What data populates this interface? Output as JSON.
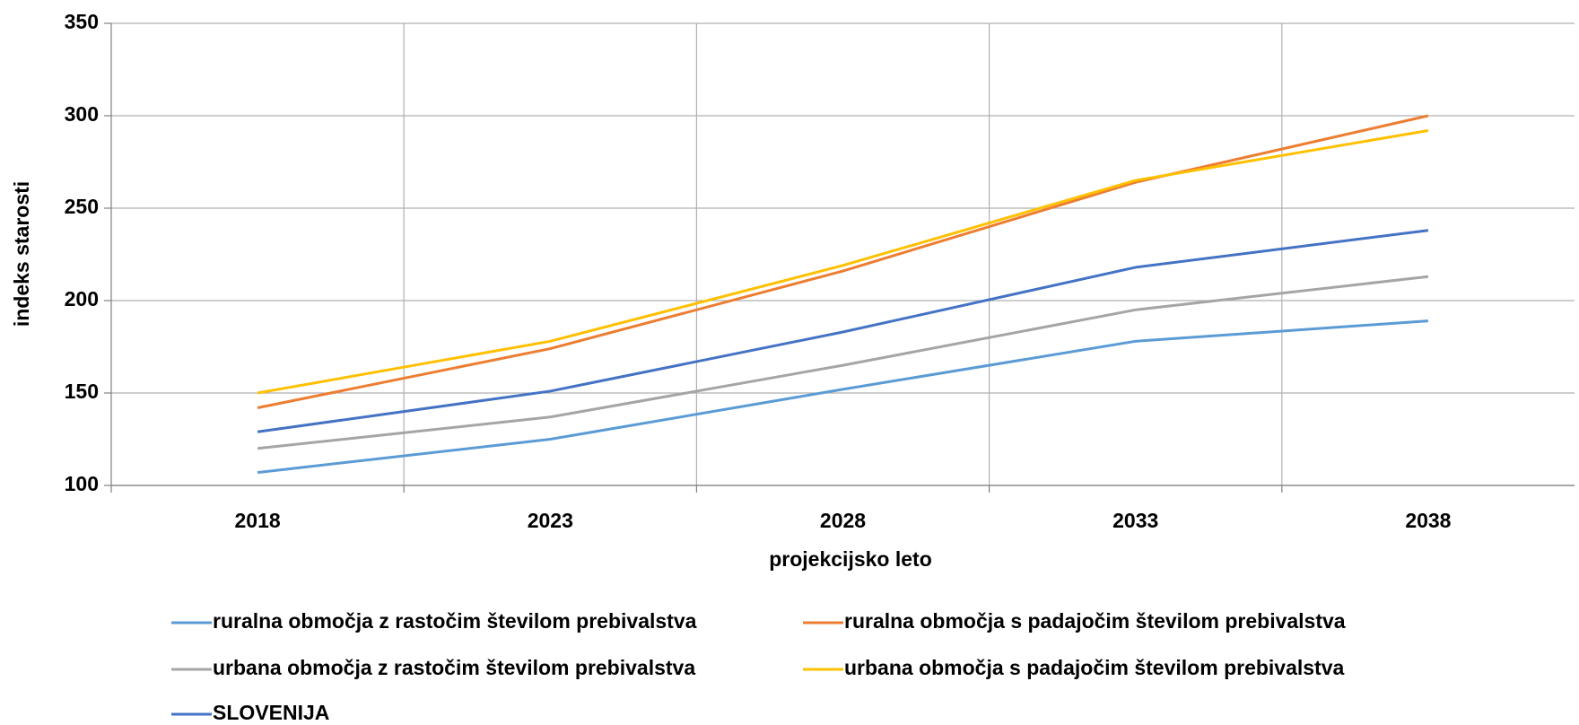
{
  "chart_data": {
    "type": "line",
    "x_label": "projekcijsko leto",
    "y_label": "indeks starosti",
    "categories": [
      "2018",
      "2023",
      "2028",
      "2033",
      "2038"
    ],
    "series": [
      {
        "name": "ruralna območja z rastočim številom prebivalstva",
        "color": "#5b9bd5",
        "values": [
          107,
          125,
          152,
          178,
          189
        ]
      },
      {
        "name": "ruralna območja s padajočim številom prebivalstva",
        "color": "#ed7d31",
        "values": [
          142,
          174,
          216,
          264,
          300
        ]
      },
      {
        "name": "urbana območja z rastočim številom prebivalstva",
        "color": "#a5a5a5",
        "values": [
          120,
          137,
          165,
          195,
          213
        ]
      },
      {
        "name": "urbana območja s padajočim številom prebivalstva",
        "color": "#ffc000",
        "values": [
          150,
          178,
          219,
          265,
          292
        ]
      },
      {
        "name": "SLOVENIJA",
        "color": "#4472c4",
        "values": [
          129,
          151,
          183,
          218,
          238
        ]
      }
    ],
    "ylim": [
      100,
      350
    ],
    "yticks": [
      100,
      150,
      200,
      250,
      300,
      350
    ],
    "grid": true,
    "legend": "bottom"
  }
}
